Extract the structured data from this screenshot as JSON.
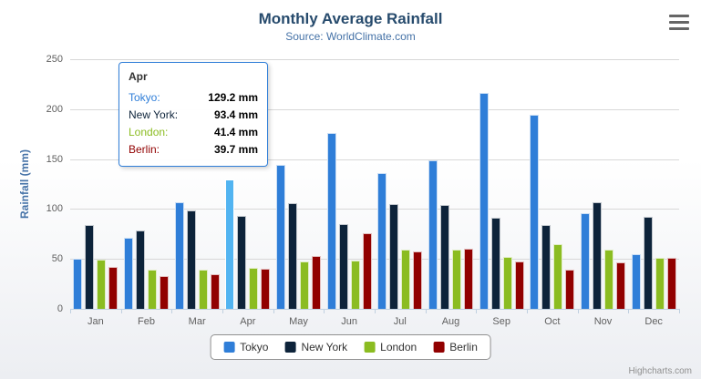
{
  "chart": {
    "credits": "Highcharts.com",
    "icons": {
      "export_menu": "hamburger-menu"
    }
  },
  "chart_data": {
    "type": "bar",
    "title": "Monthly Average Rainfall",
    "subtitle": "Source: WorldClimate.com",
    "xlabel": "",
    "ylabel": "Rainfall (mm)",
    "ylim": [
      0,
      250
    ],
    "yticks": [
      0,
      50,
      100,
      150,
      200,
      250
    ],
    "grid": true,
    "legend_position": "bottom",
    "categories": [
      "Jan",
      "Feb",
      "Mar",
      "Apr",
      "May",
      "Jun",
      "Jul",
      "Aug",
      "Sep",
      "Oct",
      "Nov",
      "Dec"
    ],
    "series": [
      {
        "name": "Tokyo",
        "color": "#2f7ed8",
        "values": [
          49.9,
          71.5,
          106.4,
          129.2,
          144.0,
          176.0,
          135.6,
          148.5,
          216.4,
          194.1,
          95.6,
          54.4
        ]
      },
      {
        "name": "New York",
        "color": "#0d233a",
        "values": [
          83.6,
          78.8,
          98.5,
          93.4,
          106.0,
          84.5,
          105.0,
          104.3,
          91.2,
          83.5,
          106.6,
          92.3
        ]
      },
      {
        "name": "London",
        "color": "#8bbc21",
        "values": [
          48.9,
          38.8,
          39.3,
          41.4,
          47.0,
          48.3,
          59.0,
          59.6,
          52.4,
          65.2,
          59.3,
          51.2
        ]
      },
      {
        "name": "Berlin",
        "color": "#910000",
        "values": [
          42.4,
          33.2,
          34.5,
          39.7,
          52.6,
          75.5,
          57.4,
          60.4,
          47.6,
          39.1,
          46.8,
          51.1
        ]
      }
    ],
    "hover": {
      "series": "Tokyo",
      "category": "Apr"
    },
    "tooltip": {
      "category": "Apr",
      "rows": [
        {
          "series": "Tokyo",
          "value": "129.2 mm"
        },
        {
          "series": "New York",
          "value": "93.4 mm"
        },
        {
          "series": "London",
          "value": "41.4 mm"
        },
        {
          "series": "Berlin",
          "value": "39.7 mm"
        }
      ]
    }
  }
}
